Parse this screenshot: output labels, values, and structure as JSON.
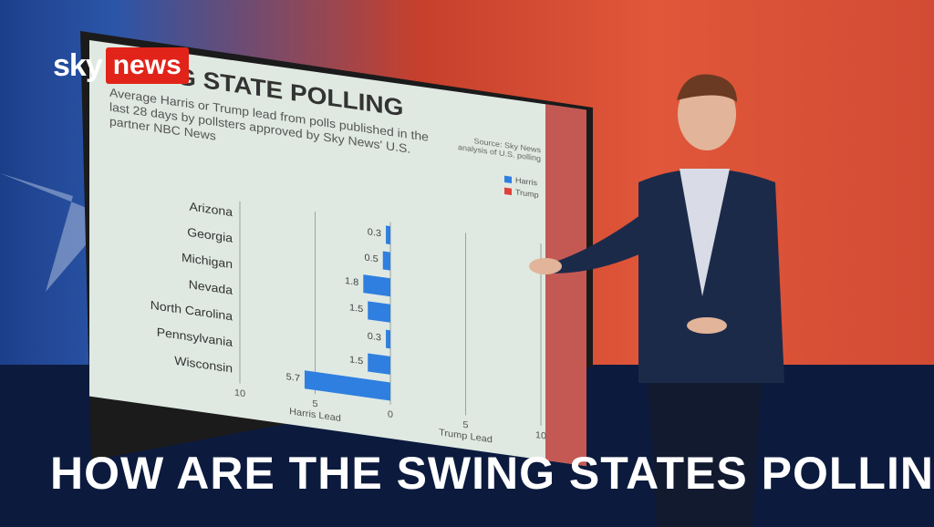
{
  "logo": {
    "brand": "sky",
    "product": "news"
  },
  "headline": "HOW ARE THE SWING STATES POLLING?",
  "chart_data": {
    "type": "hbar",
    "title": "SWING STATE POLLING",
    "subtitle": "Average Harris or Trump lead from polls published in the last 28 days by pollsters approved by Sky News' U.S. partner NBC News",
    "source": "Source: Sky News analysis of U.S. polling",
    "categories": [
      "Arizona",
      "Georgia",
      "Michigan",
      "Nevada",
      "North Carolina",
      "Pennsylvania",
      "Wisconsin"
    ],
    "series": [
      {
        "name": "Harris",
        "color": "#2f7fe0",
        "values": [
          0.3,
          0.5,
          1.8,
          1.5,
          0.3,
          1.5,
          5.7
        ]
      },
      {
        "name": "Trump",
        "color": "#e0403a",
        "values": [
          null,
          null,
          null,
          null,
          null,
          null,
          null
        ]
      }
    ],
    "xlim": [
      10,
      -10
    ],
    "xticks": [
      10,
      5,
      0,
      {
        "value": -5,
        "label": "5"
      },
      {
        "value": -10,
        "label": "10"
      }
    ],
    "xlabel_left": "Harris Lead",
    "xlabel_right": "Trump Lead",
    "grid": true,
    "legend": "top-right"
  }
}
